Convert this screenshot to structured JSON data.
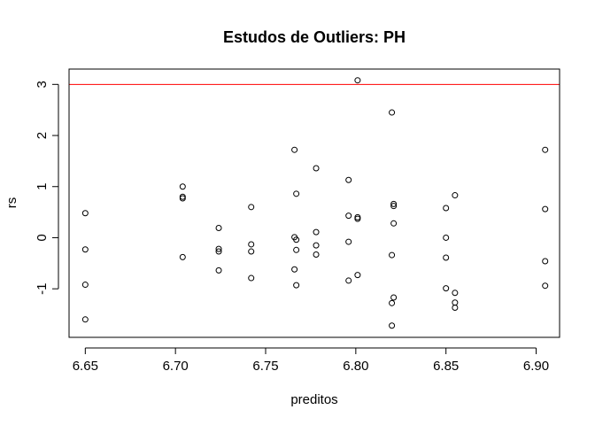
{
  "chart_data": {
    "type": "scatter",
    "title": "Estudos de Outliers:  PH",
    "xlabel": "preditos",
    "ylabel": "rs",
    "xlim": [
      6.641,
      6.913
    ],
    "ylim": [
      -1.95,
      3.3
    ],
    "xticks": [
      {
        "value": 6.65,
        "label": "6.65"
      },
      {
        "value": 6.7,
        "label": "6.70"
      },
      {
        "value": 6.75,
        "label": "6.75"
      },
      {
        "value": 6.8,
        "label": "6.80"
      },
      {
        "value": 6.85,
        "label": "6.85"
      },
      {
        "value": 6.9,
        "label": "6.90"
      }
    ],
    "yticks": [
      {
        "value": -1,
        "label": "-1"
      },
      {
        "value": 0,
        "label": "0"
      },
      {
        "value": 1,
        "label": "1"
      },
      {
        "value": 2,
        "label": "2"
      },
      {
        "value": 3,
        "label": "3"
      }
    ],
    "reference_line": {
      "y": 3,
      "color": "#ff0000"
    },
    "grid": false,
    "points": [
      {
        "x": 6.65,
        "y": 0.48
      },
      {
        "x": 6.65,
        "y": -0.23
      },
      {
        "x": 6.65,
        "y": -0.92
      },
      {
        "x": 6.65,
        "y": -1.6
      },
      {
        "x": 6.704,
        "y": 1.0
      },
      {
        "x": 6.704,
        "y": 0.8
      },
      {
        "x": 6.704,
        "y": 0.77
      },
      {
        "x": 6.704,
        "y": -0.38
      },
      {
        "x": 6.724,
        "y": 0.19
      },
      {
        "x": 6.724,
        "y": -0.22
      },
      {
        "x": 6.724,
        "y": -0.27
      },
      {
        "x": 6.724,
        "y": -0.64
      },
      {
        "x": 6.742,
        "y": 0.6
      },
      {
        "x": 6.742,
        "y": -0.13
      },
      {
        "x": 6.742,
        "y": -0.27
      },
      {
        "x": 6.742,
        "y": -0.79
      },
      {
        "x": 6.766,
        "y": 1.72
      },
      {
        "x": 6.767,
        "y": 0.86
      },
      {
        "x": 6.766,
        "y": 0.01
      },
      {
        "x": 6.767,
        "y": -0.04
      },
      {
        "x": 6.767,
        "y": -0.24
      },
      {
        "x": 6.766,
        "y": -0.62
      },
      {
        "x": 6.767,
        "y": -0.93
      },
      {
        "x": 6.778,
        "y": 1.36
      },
      {
        "x": 6.778,
        "y": 0.11
      },
      {
        "x": 6.778,
        "y": -0.15
      },
      {
        "x": 6.778,
        "y": -0.33
      },
      {
        "x": 6.796,
        "y": 1.13
      },
      {
        "x": 6.796,
        "y": 0.43
      },
      {
        "x": 6.796,
        "y": -0.08
      },
      {
        "x": 6.796,
        "y": -0.84
      },
      {
        "x": 6.801,
        "y": 3.08
      },
      {
        "x": 6.801,
        "y": 0.4
      },
      {
        "x": 6.801,
        "y": 0.37
      },
      {
        "x": 6.801,
        "y": -0.73
      },
      {
        "x": 6.82,
        "y": 2.45
      },
      {
        "x": 6.821,
        "y": 0.66
      },
      {
        "x": 6.821,
        "y": 0.62
      },
      {
        "x": 6.821,
        "y": 0.28
      },
      {
        "x": 6.82,
        "y": -0.34
      },
      {
        "x": 6.821,
        "y": -1.17
      },
      {
        "x": 6.82,
        "y": -1.28
      },
      {
        "x": 6.82,
        "y": -1.72
      },
      {
        "x": 6.85,
        "y": 0.58
      },
      {
        "x": 6.85,
        "y": 0.0
      },
      {
        "x": 6.85,
        "y": -0.39
      },
      {
        "x": 6.85,
        "y": -0.99
      },
      {
        "x": 6.855,
        "y": 0.83
      },
      {
        "x": 6.855,
        "y": -1.08
      },
      {
        "x": 6.855,
        "y": -1.27
      },
      {
        "x": 6.855,
        "y": -1.37
      },
      {
        "x": 6.905,
        "y": 1.72
      },
      {
        "x": 6.905,
        "y": 0.56
      },
      {
        "x": 6.905,
        "y": -0.46
      },
      {
        "x": 6.905,
        "y": -0.94
      }
    ]
  }
}
